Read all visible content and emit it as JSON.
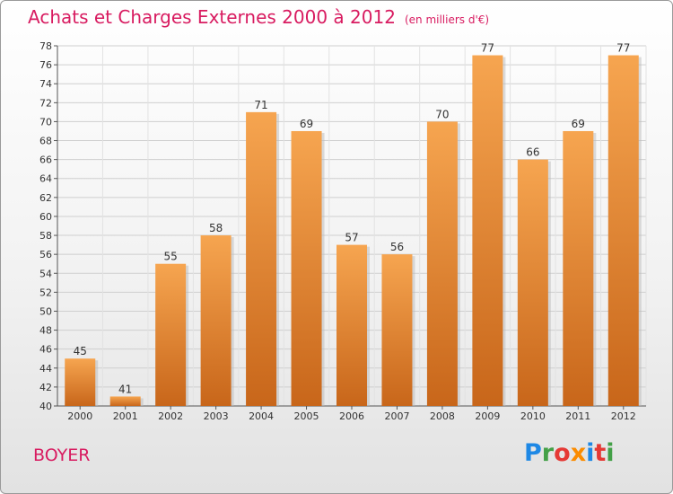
{
  "header": {
    "title": "Achats et Charges Externes 2000 à 2012",
    "subtitle": "(en milliers d'€)"
  },
  "commune": "BOYER",
  "logo": {
    "letters": [
      "P",
      "r",
      "o",
      "x",
      "i",
      "t",
      "i"
    ],
    "colors": [
      "#1e88e5",
      "#43a047",
      "#e53935",
      "#fb8c00",
      "#1e88e5",
      "#e53935",
      "#43a047"
    ]
  },
  "colors": {
    "accent": "#d81b60",
    "bar_top": "#f6a550",
    "bar_bottom": "#c8661a",
    "grid": "#cfcfcf"
  },
  "chart_data": {
    "type": "bar",
    "title": "Achats et Charges Externes 2000 à 2012",
    "xlabel": "",
    "ylabel": "",
    "ylim": [
      40,
      78
    ],
    "ytick_step": 2,
    "categories": [
      "2000",
      "2001",
      "2002",
      "2003",
      "2004",
      "2005",
      "2006",
      "2007",
      "2008",
      "2009",
      "2010",
      "2011",
      "2012"
    ],
    "values": [
      45,
      41,
      55,
      58,
      71,
      69,
      57,
      56,
      70,
      77,
      66,
      69,
      77
    ]
  }
}
